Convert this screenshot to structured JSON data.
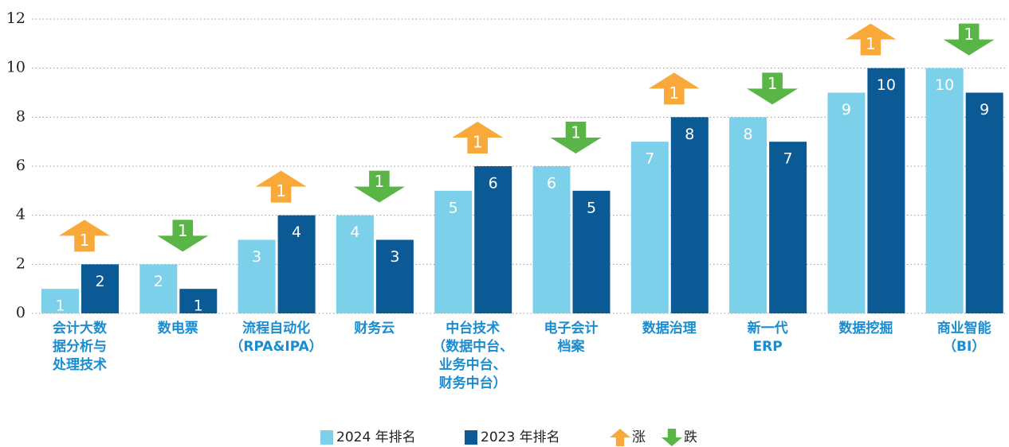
{
  "chart_data": {
    "type": "bar",
    "categories": [
      "会计大数\n据分析与\n处理技术",
      "数电票",
      "流程自动化\n（RPA&IPA）",
      "财务云",
      "中台技术\n（数据中台、\n业务中台、\n财务中台）",
      "电子会计\n档案",
      "数据治理",
      "新一代\nERP",
      "数据挖掘",
      "商业智能\n（BI）"
    ],
    "series": [
      {
        "name": "2024 年排名",
        "color": "#7dd0ea",
        "values": [
          1,
          2,
          3,
          4,
          5,
          6,
          7,
          8,
          9,
          10
        ]
      },
      {
        "name": "2023 年排名",
        "color": "#0b5a96",
        "values": [
          2,
          1,
          4,
          3,
          6,
          5,
          8,
          7,
          10,
          9
        ]
      }
    ],
    "changes": [
      {
        "direction": "up",
        "value": 1
      },
      {
        "direction": "down",
        "value": 1
      },
      {
        "direction": "up",
        "value": 1
      },
      {
        "direction": "down",
        "value": 1
      },
      {
        "direction": "up",
        "value": 1
      },
      {
        "direction": "down",
        "value": 1
      },
      {
        "direction": "up",
        "value": 1
      },
      {
        "direction": "down",
        "value": 1
      },
      {
        "direction": "up",
        "value": 1
      },
      {
        "direction": "down",
        "value": 1
      }
    ],
    "arrow_colors": {
      "up": "#f8a93a",
      "down": "#5ab547"
    },
    "legend_symbols": {
      "up": "涨",
      "down": "跌"
    },
    "ylim": [
      0,
      12
    ],
    "yticks": [
      0,
      2,
      4,
      6,
      8,
      10,
      12
    ],
    "grid": true
  }
}
